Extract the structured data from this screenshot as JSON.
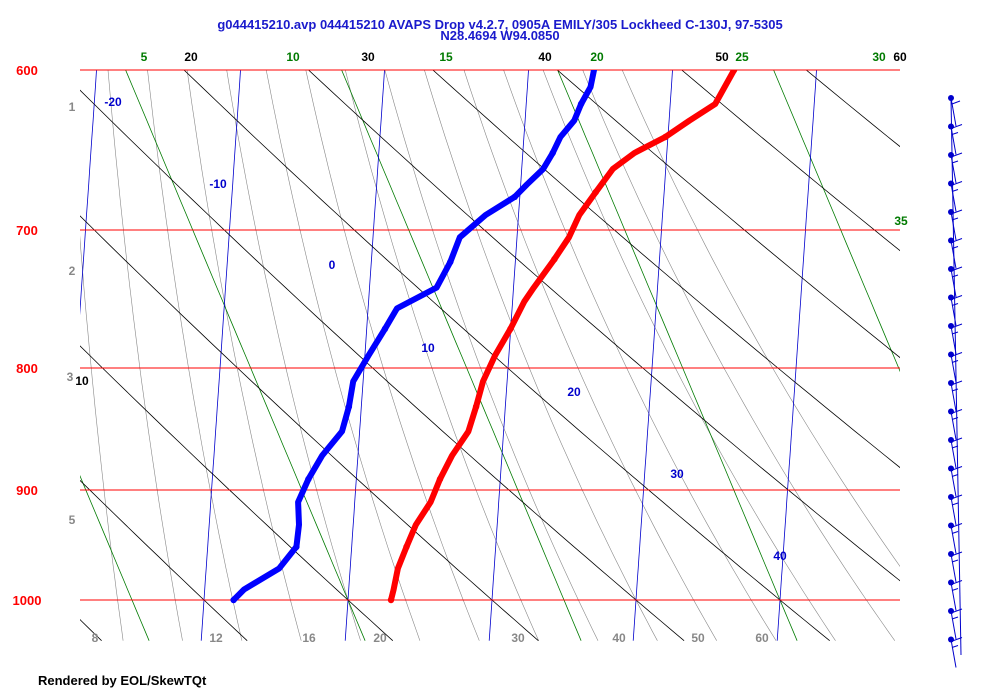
{
  "title": "g044415210.avp 044415210 AVAPS Drop v4.2.7, 0905A EMILY/305 Lockheed C-130J, 97-5305",
  "subtitle": "N28.4694 W94.0850",
  "footer": "Rendered by EOL/SkewTQt",
  "colors": {
    "isobar": "#ff0000",
    "isotherm": "#0000cc",
    "dry_adiabat": "#000000",
    "mixing_ratio": "#007a00",
    "moist_adiabat": "#888888",
    "temperature": "#ff0000",
    "dewpoint": "#0000ff",
    "wind_barb": "#0000cc"
  },
  "chart_data": {
    "type": "skew-t",
    "pressure_range_hpa": [
      1000,
      600
    ],
    "isobars": [
      "600",
      "700",
      "800",
      "900",
      "1000"
    ],
    "isotherm_labels": [
      "-20",
      "-10",
      "0",
      "10",
      "20",
      "30",
      "40"
    ],
    "dry_adiabat_labels": [
      "20",
      "30",
      "40",
      "50",
      "60",
      "10"
    ],
    "mixing_ratio_labels": [
      "5",
      "10",
      "15",
      "20",
      "25",
      "30",
      "35"
    ],
    "altitude_labels": [
      "1",
      "2",
      "3",
      "5"
    ],
    "bottom_labels": [
      "8",
      "12",
      "16",
      "20",
      "30",
      "40",
      "50",
      "60"
    ],
    "series": [
      {
        "name": "temperature",
        "points": [
          [
            1000,
            25.0
          ],
          [
            990,
            25.3
          ],
          [
            970,
            25.8
          ],
          [
            950,
            26.8
          ],
          [
            930,
            27.9
          ],
          [
            910,
            29.6
          ],
          [
            890,
            30.7
          ],
          [
            870,
            32.1
          ],
          [
            850,
            34.0
          ],
          [
            830,
            34.9
          ],
          [
            810,
            35.7
          ],
          [
            790,
            37.1
          ],
          [
            770,
            38.9
          ],
          [
            750,
            40.5
          ],
          [
            740,
            41.6
          ],
          [
            720,
            44.0
          ],
          [
            705,
            45.7
          ],
          [
            690,
            46.9
          ],
          [
            675,
            48.8
          ],
          [
            660,
            50.8
          ],
          [
            650,
            53.3
          ],
          [
            640,
            56.9
          ],
          [
            630,
            59.7
          ],
          [
            620,
            62.7
          ],
          [
            600,
            64.9
          ]
        ]
      },
      {
        "name": "dewpoint",
        "points": [
          [
            1000,
            6.7
          ],
          [
            990,
            7.9
          ],
          [
            970,
            12.0
          ],
          [
            950,
            14.0
          ],
          [
            930,
            14.3
          ],
          [
            910,
            14.2
          ],
          [
            890,
            15.4
          ],
          [
            870,
            17.0
          ],
          [
            850,
            19.3
          ],
          [
            830,
            20.1
          ],
          [
            810,
            20.6
          ],
          [
            790,
            22.4
          ],
          [
            770,
            24.3
          ],
          [
            755,
            25.7
          ],
          [
            740,
            30.3
          ],
          [
            722,
            31.9
          ],
          [
            705,
            33.0
          ],
          [
            690,
            36.0
          ],
          [
            678,
            39.4
          ],
          [
            670,
            40.8
          ],
          [
            660,
            42.7
          ],
          [
            650,
            43.8
          ],
          [
            640,
            44.7
          ],
          [
            630,
            46.3
          ],
          [
            620,
            47.1
          ],
          [
            610,
            48.2
          ],
          [
            600,
            48.6
          ]
        ]
      }
    ],
    "wind_barbs": {
      "direction_deg": 225,
      "speed_kt": [
        5,
        15,
        15,
        15,
        15,
        15,
        15,
        15,
        15,
        15,
        15,
        15,
        15,
        15,
        15,
        15,
        15,
        15,
        15,
        15
      ]
    }
  }
}
